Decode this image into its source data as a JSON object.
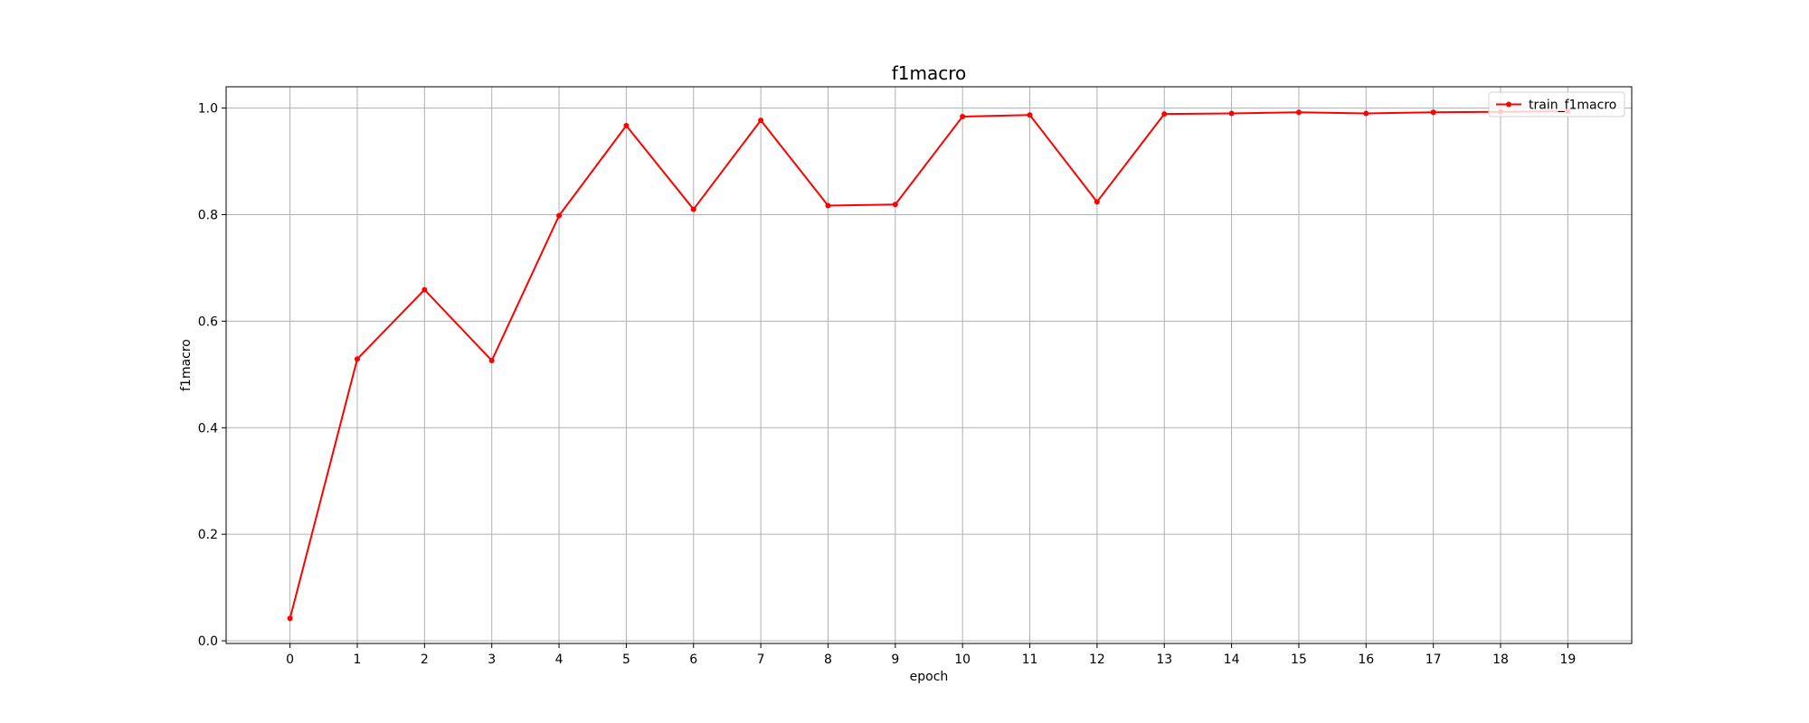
{
  "chart_data": {
    "type": "line",
    "title": "f1macro",
    "xlabel": "epoch",
    "ylabel": "f1macro",
    "x": [
      0,
      1,
      2,
      3,
      4,
      5,
      6,
      7,
      8,
      9,
      10,
      11,
      12,
      13,
      14,
      15,
      16,
      17,
      18,
      19
    ],
    "x_ticks": [
      "0",
      "1",
      "2",
      "3",
      "4",
      "5",
      "6",
      "7",
      "8",
      "9",
      "10",
      "11",
      "12",
      "13",
      "14",
      "15",
      "16",
      "17",
      "18",
      "19"
    ],
    "y_ticks": [
      "0.0",
      "0.2",
      "0.4",
      "0.6",
      "0.8",
      "1.0"
    ],
    "y_tick_values": [
      0.0,
      0.2,
      0.4,
      0.6,
      0.8,
      1.0
    ],
    "xlim": [
      -0.95,
      19.95
    ],
    "ylim": [
      -0.005,
      1.04
    ],
    "grid": true,
    "legend_position": "top-right",
    "series": [
      {
        "name": "train_f1macro",
        "color": "#ff0000",
        "marker": "dot",
        "values": [
          0.042,
          0.529,
          0.659,
          0.526,
          0.798,
          0.967,
          0.81,
          0.977,
          0.817,
          0.819,
          0.984,
          0.987,
          0.824,
          0.989,
          0.99,
          0.992,
          0.99,
          0.992,
          0.993,
          0.994
        ]
      }
    ]
  }
}
